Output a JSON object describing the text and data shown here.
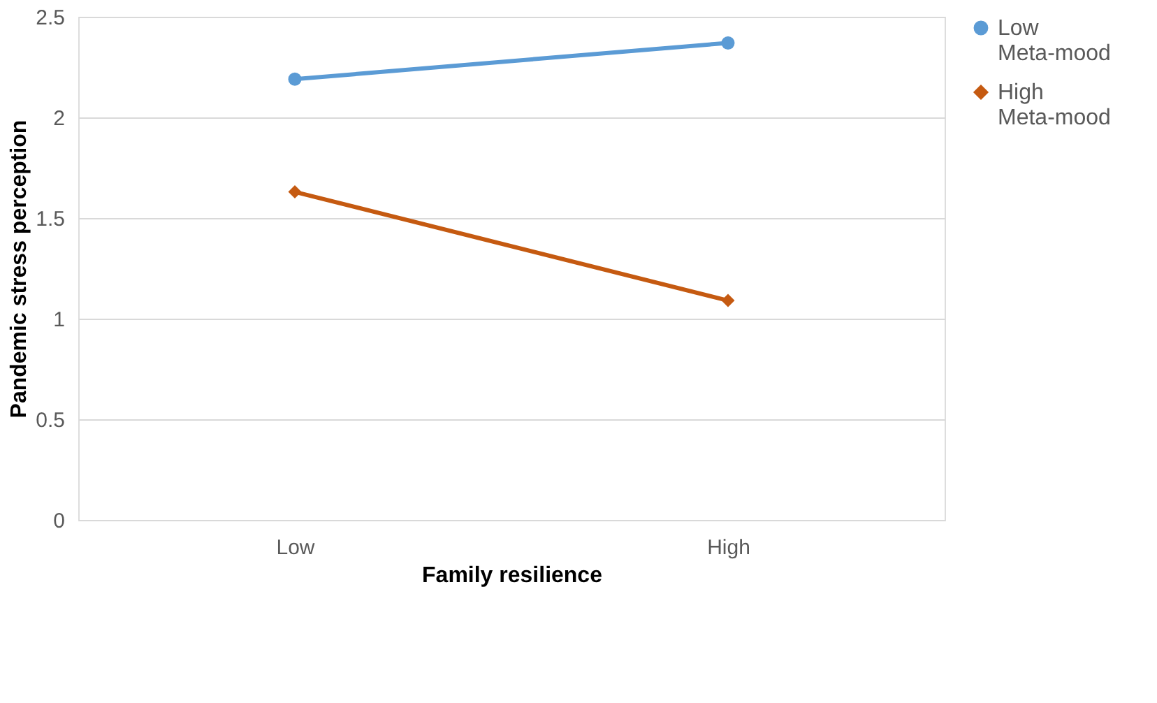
{
  "chart_data": {
    "type": "line",
    "xlabel": "Family resilience",
    "ylabel": "Pandemic stress  perception",
    "categories": [
      "Low",
      "High"
    ],
    "series": [
      {
        "name": "Low Meta-mood",
        "color": "#5b9bd5",
        "marker": "circle",
        "values": [
          2.19,
          2.37
        ]
      },
      {
        "name": "High Meta-mood",
        "color": "#c55a11",
        "marker": "diamond",
        "values": [
          1.63,
          1.09
        ]
      }
    ],
    "ylim": [
      0,
      2.5
    ],
    "yticks": [
      0,
      0.5,
      1,
      1.5,
      2,
      2.5
    ],
    "grid": "y",
    "legend": "right",
    "line_style": "solid"
  }
}
